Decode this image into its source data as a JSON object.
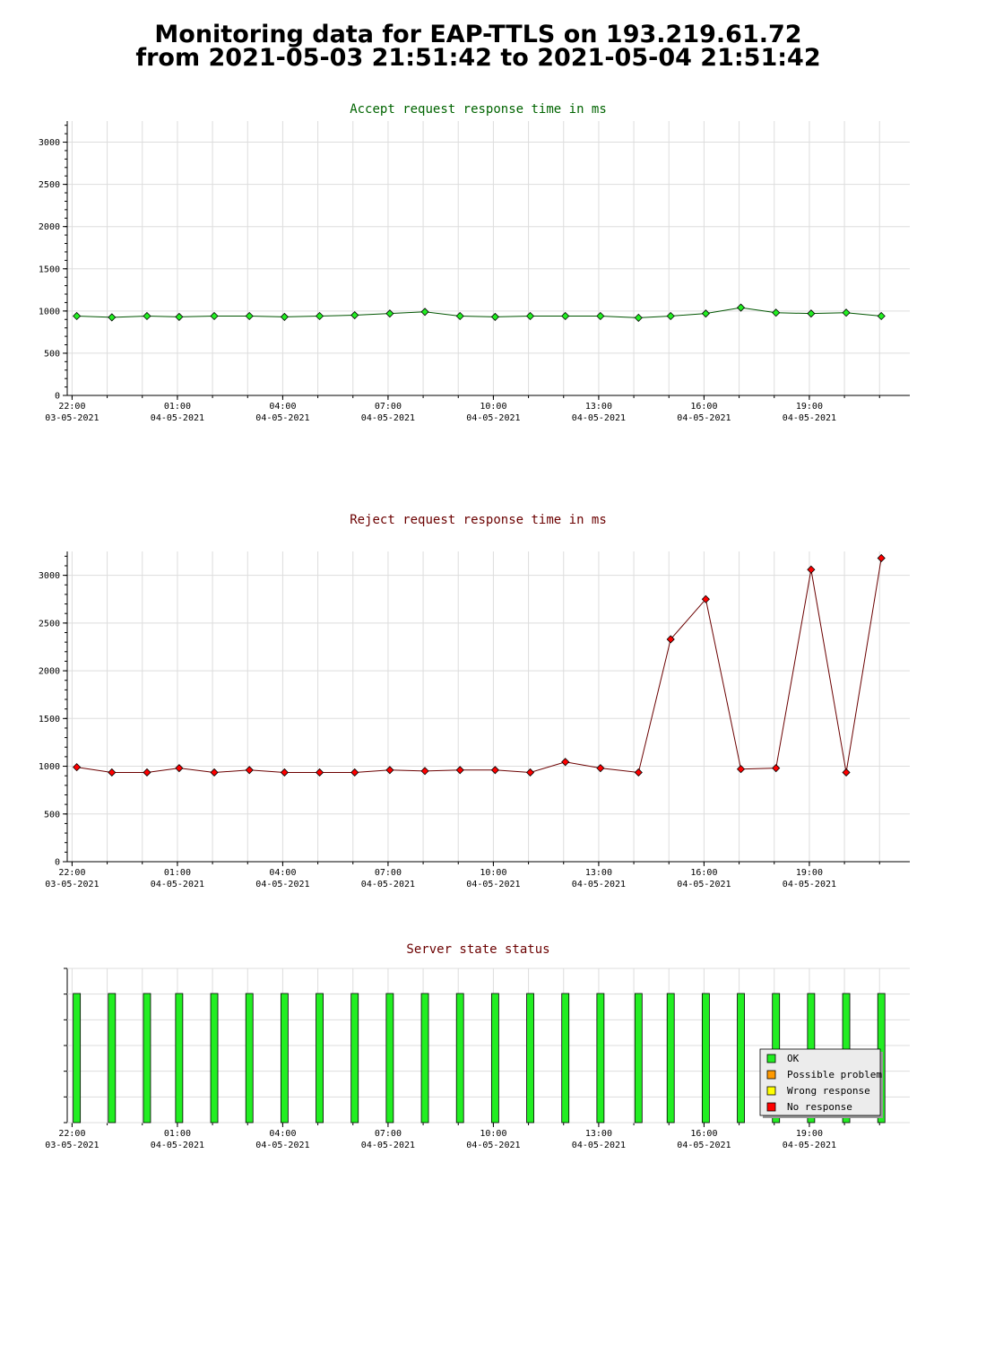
{
  "page": {
    "title_line1": "Monitoring data for EAP-TTLS on 193.219.61.72",
    "title_line2": "from 2021-05-03 21:51:42 to 2021-05-04 21:51:42"
  },
  "colors": {
    "accept_title": "#006400",
    "reject_title": "#6b0000",
    "status_title": "#6b0000",
    "accept_marker": "#22ee22",
    "accept_line": "#005500",
    "reject_marker": "#ff0000",
    "reject_line": "#6b0000",
    "grid": "#dddddd",
    "status_ok": "#22ee22",
    "status_possible_problem": "#ff9900",
    "status_wrong_response": "#ffff00",
    "status_no_response": "#ff0000"
  },
  "x_ticks": [
    {
      "time": "22:00",
      "date": "03-05-2021"
    },
    {
      "time": "01:00",
      "date": "04-05-2021"
    },
    {
      "time": "04:00",
      "date": "04-05-2021"
    },
    {
      "time": "07:00",
      "date": "04-05-2021"
    },
    {
      "time": "10:00",
      "date": "04-05-2021"
    },
    {
      "time": "13:00",
      "date": "04-05-2021"
    },
    {
      "time": "16:00",
      "date": "04-05-2021"
    },
    {
      "time": "19:00",
      "date": "04-05-2021"
    }
  ],
  "chart_data": [
    {
      "type": "line",
      "title": "Accept request response time in ms",
      "xlabel": "",
      "ylabel": "",
      "x_range": [
        "2021-05-03 21:51:42",
        "2021-05-04 21:51:42"
      ],
      "ylim": [
        0,
        3250
      ],
      "y_ticks": [
        0,
        500,
        1000,
        1500,
        2000,
        2500,
        3000
      ],
      "grid": true,
      "x": [
        "22:08",
        "23:08",
        "00:08",
        "01:03",
        "02:03",
        "03:03",
        "04:03",
        "05:03",
        "06:03",
        "07:03",
        "08:03",
        "09:03",
        "10:03",
        "11:03",
        "12:03",
        "13:03",
        "14:08",
        "15:03",
        "16:03",
        "17:03",
        "18:03",
        "19:03",
        "20:03",
        "21:03"
      ],
      "values": [
        940,
        925,
        940,
        930,
        940,
        940,
        930,
        940,
        950,
        970,
        990,
        940,
        930,
        940,
        940,
        940,
        920,
        940,
        970,
        1040,
        980,
        970,
        980,
        940
      ]
    },
    {
      "type": "line",
      "title": "Reject request response time in ms",
      "xlabel": "",
      "ylabel": "",
      "x_range": [
        "2021-05-03 21:51:42",
        "2021-05-04 21:51:42"
      ],
      "ylim": [
        0,
        3250
      ],
      "y_ticks": [
        0,
        500,
        1000,
        1500,
        2000,
        2500,
        3000
      ],
      "grid": true,
      "x": [
        "22:08",
        "23:08",
        "00:08",
        "01:03",
        "02:03",
        "03:03",
        "04:03",
        "05:03",
        "06:03",
        "07:03",
        "08:03",
        "09:03",
        "10:03",
        "11:03",
        "12:03",
        "13:03",
        "14:08",
        "15:03",
        "16:03",
        "17:03",
        "18:03",
        "19:03",
        "20:03",
        "21:03"
      ],
      "values": [
        990,
        935,
        935,
        980,
        935,
        960,
        935,
        935,
        935,
        960,
        950,
        960,
        960,
        935,
        1045,
        980,
        935,
        2330,
        2750,
        970,
        980,
        3060,
        935,
        3180
      ]
    },
    {
      "type": "bar",
      "title": "Server state status",
      "grid": true,
      "x": [
        "22:08",
        "23:08",
        "00:08",
        "01:03",
        "02:03",
        "03:03",
        "04:03",
        "05:03",
        "06:03",
        "07:03",
        "08:03",
        "09:03",
        "10:03",
        "11:03",
        "12:03",
        "13:03",
        "14:08",
        "15:03",
        "16:03",
        "17:03",
        "18:03",
        "19:03",
        "20:03",
        "21:03"
      ],
      "status": [
        "OK",
        "OK",
        "OK",
        "OK",
        "OK",
        "OK",
        "OK",
        "OK",
        "OK",
        "OK",
        "OK",
        "OK",
        "OK",
        "OK",
        "OK",
        "OK",
        "OK",
        "OK",
        "OK",
        "OK",
        "OK",
        "OK",
        "OK",
        "OK"
      ],
      "legend_position": "bottom-right",
      "legend": [
        "OK",
        "Possible problem",
        "Wrong response",
        "No response"
      ]
    }
  ]
}
